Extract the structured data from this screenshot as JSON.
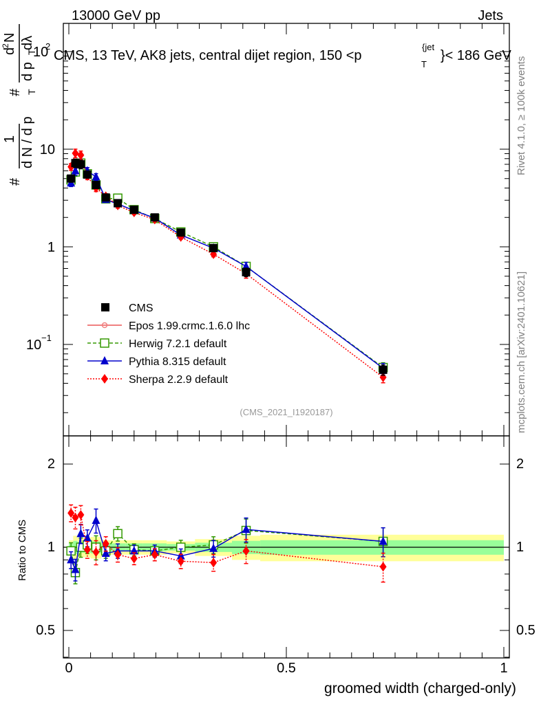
{
  "header": {
    "left": "13000 GeV pp",
    "right": "Jets",
    "title": "CMS, 13 TeV, AK8 jets, central dijet region, 150 <p",
    "title_sup": "{jet",
    "title_sub": "T",
    "title_tail": "}< 186 GeV",
    "side_top": "Rivet 4.1.0, ≥ 100k events",
    "side_bottom": "mcplots.cern.ch [arXiv:2401.10621]",
    "watermark": "(CMS_2021_I1920187)"
  },
  "ylabel_main": {
    "hash1": "#",
    "one": "1",
    "dN": "d N / d p",
    "T1": "T",
    "hash2": "#",
    "d2N": "d",
    "sq": "2",
    "N": "N",
    "dp": "d p",
    "T2": "T",
    "dl": "dλ"
  },
  "ylabel_ratio": "Ratio to CMS",
  "xlabel": "groomed width (charged-only)",
  "main_ticks": {
    "y100": "10",
    "y100exp": "2",
    "y10": "10",
    "y1": "1",
    "y01": "10",
    "y01exp": "−1"
  },
  "ratio_ticks": [
    "0.5",
    "1",
    "2"
  ],
  "x_ticks": [
    "0",
    "0.5",
    "1"
  ],
  "legend": [
    "CMS",
    "Epos 1.99.crmc.1.6.0 lhc",
    "Herwig 7.2.1 default",
    "Pythia 8.315 default",
    "Sherpa 2.2.9 default"
  ],
  "colors": {
    "cms": "#000000",
    "epos": "#f08080",
    "herwig": "#339900",
    "pythia": "#0000cc",
    "sherpa": "#ff0000",
    "band1": "#ffff99",
    "band2": "#99ff99"
  },
  "chart_data": {
    "type": "scatter",
    "title": "CMS, 13 TeV, AK8 jets, central dijet region, 150 <p_T^{jet}< 186 GeV",
    "xlabel": "groomed width (charged-only)",
    "ylabel": "1/dN/dp_T d2N/dp_T dλ",
    "xlim": [
      0,
      1
    ],
    "ylim_main": [
      0.01,
      200
    ],
    "ylim_ratio": [
      0.4,
      2.5
    ],
    "yscale": "log",
    "x": [
      0.005,
      0.015,
      0.0275,
      0.0425,
      0.0625,
      0.085,
      0.1125,
      0.15,
      0.1975,
      0.2575,
      0.3325,
      0.4075,
      0.7225
    ],
    "series": [
      {
        "name": "CMS",
        "values": [
          5.0,
          7.2,
          7.0,
          5.5,
          4.3,
          3.2,
          2.8,
          2.4,
          2.0,
          1.4,
          0.97,
          0.55,
          0.055
        ]
      },
      {
        "name": "Herwig 7.2.1 default",
        "values": [
          4.85,
          5.85,
          7.2,
          5.6,
          4.3,
          3.1,
          3.15,
          2.4,
          1.95,
          1.42,
          1.0,
          0.63,
          0.058
        ]
      },
      {
        "name": "Pythia 8.315 default",
        "values": [
          4.5,
          6.0,
          7.6,
          6.0,
          5.2,
          3.05,
          2.75,
          2.35,
          1.97,
          1.32,
          0.97,
          0.63,
          0.057
        ]
      },
      {
        "name": "Sherpa 2.2.9 default",
        "values": [
          6.6,
          9.1,
          8.7,
          5.3,
          4.0,
          3.3,
          2.65,
          2.25,
          1.9,
          1.26,
          0.84,
          0.53,
          0.046
        ]
      }
    ],
    "ratio": [
      {
        "name": "Herwig 7.2.1 default",
        "values": [
          0.97,
          0.81,
          1.0,
          1.02,
          1.0,
          0.97,
          1.12,
          0.98,
          0.97,
          1.0,
          1.02,
          1.15,
          1.05
        ]
      },
      {
        "name": "Pythia 8.315 default",
        "values": [
          0.9,
          0.83,
          1.12,
          1.08,
          1.25,
          0.95,
          0.97,
          0.97,
          0.97,
          0.93,
          0.99,
          1.16,
          1.05
        ]
      },
      {
        "name": "Sherpa 2.2.9 default",
        "values": [
          1.33,
          1.28,
          1.31,
          0.98,
          0.96,
          1.03,
          0.94,
          0.91,
          0.94,
          0.89,
          0.88,
          0.97,
          0.85
        ]
      }
    ]
  }
}
